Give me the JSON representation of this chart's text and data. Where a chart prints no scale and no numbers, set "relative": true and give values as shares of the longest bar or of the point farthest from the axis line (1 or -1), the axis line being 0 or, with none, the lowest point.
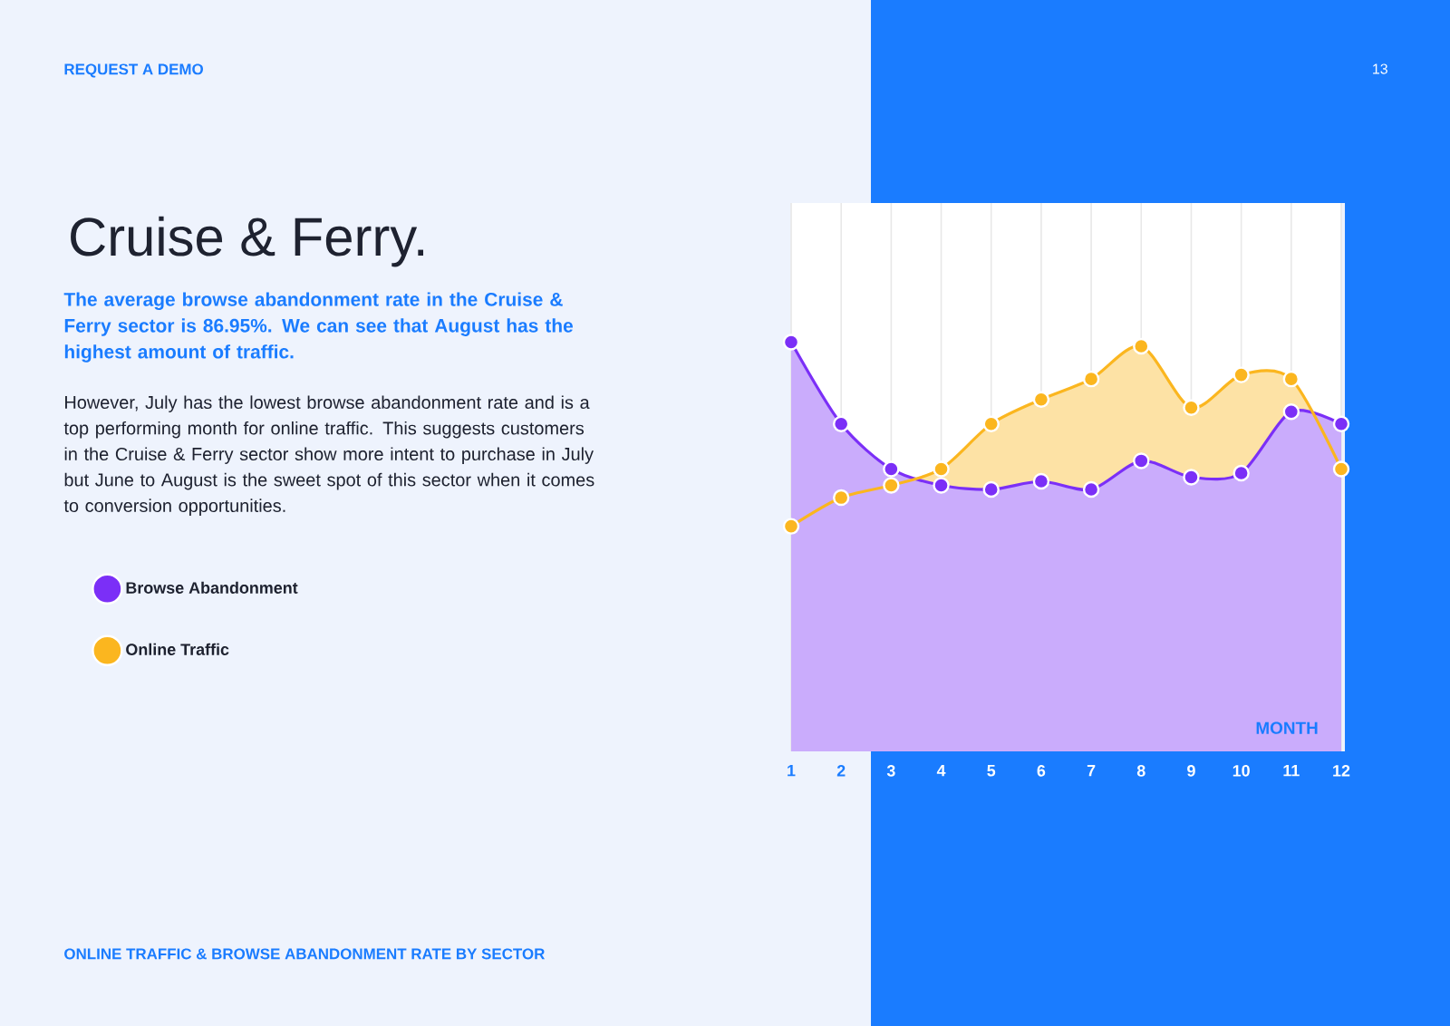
{
  "chart_data": {
    "type": "area",
    "title": "Cruise & Ferry.",
    "subtitle": "The average browse abandonment rate in the Cruise & Ferry sector is 86.95%. We can see that August has the highest amount of traffic.",
    "annotations": [
      "REQUEST A DEMO",
      "13",
      "However, July has the lowest browse abandonment rate and is a top performing month for online traffic. This suggests customers in the Cruise & Ferry sector show more intent to purchase in July but June to August is the sweet spot of this sector when it comes to conversion opportunities.",
      "ONLINE TRAFFIC & BROWSE ABANDONMENT RATE BY SECTOR"
    ],
    "xlabel": "MONTH",
    "categories": [
      "1",
      "2",
      "3",
      "4",
      "5",
      "6",
      "7",
      "8",
      "9",
      "10",
      "11",
      "12"
    ],
    "relative": true,
    "grid": "x",
    "legend": "left",
    "marker": "circle",
    "series": [
      {
        "name": "Browse Abandonment",
        "color": "#7b2ff7",
        "values": [
          1.0,
          0.8,
          0.69,
          0.65,
          0.64,
          0.66,
          0.64,
          0.71,
          0.67,
          0.68,
          0.83,
          0.8
        ]
      },
      {
        "name": "Online Traffic",
        "color": "#fbb61f",
        "values": [
          0.55,
          0.62,
          0.65,
          0.69,
          0.8,
          0.86,
          0.91,
          0.99,
          0.84,
          0.92,
          0.91,
          0.69
        ]
      }
    ]
  }
}
